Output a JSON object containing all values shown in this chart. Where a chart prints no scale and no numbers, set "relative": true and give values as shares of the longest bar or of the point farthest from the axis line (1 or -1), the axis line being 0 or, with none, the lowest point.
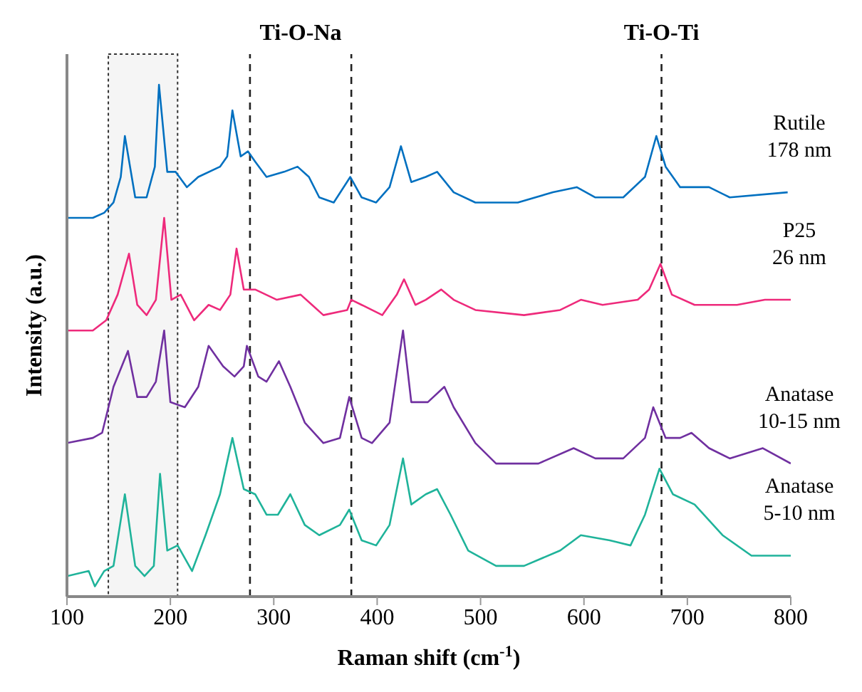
{
  "chart_data": {
    "type": "line",
    "xlabel": "Raman shift (cm$^{-1}$)",
    "ylabel": "Intensity (a.u.)",
    "relative": true,
    "xlim": [
      100,
      800
    ],
    "xticks": [
      100,
      200,
      300,
      400,
      500,
      600,
      700,
      800
    ],
    "marker": "none",
    "line_style": "solid",
    "series": [
      {
        "name": "Rutile 178 nm",
        "color": "#0070c0",
        "x": [
          100,
          125,
          136,
          145,
          152,
          156,
          166,
          177,
          185,
          189,
          197,
          205,
          216,
          227,
          248,
          255,
          260,
          268,
          275,
          282,
          293,
          310,
          323,
          334,
          344,
          358,
          374,
          385,
          399,
          412,
          423,
          433,
          447,
          458,
          474,
          495,
          536,
          570,
          593,
          611,
          638,
          659,
          670,
          679,
          693,
          721,
          741,
          797
        ],
        "values": [
          0.74,
          0.74,
          0.75,
          0.77,
          0.82,
          0.9,
          0.78,
          0.78,
          0.84,
          1.0,
          0.83,
          0.83,
          0.8,
          0.82,
          0.84,
          0.86,
          0.95,
          0.86,
          0.87,
          0.85,
          0.82,
          0.83,
          0.84,
          0.82,
          0.78,
          0.77,
          0.82,
          0.78,
          0.77,
          0.8,
          0.88,
          0.81,
          0.82,
          0.83,
          0.79,
          0.77,
          0.77,
          0.79,
          0.8,
          0.78,
          0.78,
          0.82,
          0.9,
          0.84,
          0.8,
          0.8,
          0.78,
          0.79
        ]
      },
      {
        "name": "P25 26 nm",
        "color": "#ee2a7b",
        "x": [
          100,
          125,
          138,
          149,
          160,
          168,
          177,
          186,
          194,
          201,
          210,
          223,
          237,
          248,
          258,
          264,
          271,
          282,
          303,
          326,
          337,
          348,
          371,
          375,
          385,
          405,
          419,
          426,
          437,
          447,
          462,
          474,
          495,
          542,
          577,
          597,
          618,
          652,
          663,
          674,
          685,
          707,
          748,
          775,
          800
        ],
        "values": [
          0.52,
          0.52,
          0.54,
          0.59,
          0.67,
          0.57,
          0.55,
          0.58,
          0.74,
          0.58,
          0.59,
          0.54,
          0.57,
          0.56,
          0.59,
          0.68,
          0.6,
          0.6,
          0.58,
          0.59,
          0.57,
          0.55,
          0.56,
          0.58,
          0.57,
          0.55,
          0.59,
          0.62,
          0.57,
          0.58,
          0.6,
          0.58,
          0.56,
          0.55,
          0.56,
          0.58,
          0.57,
          0.58,
          0.6,
          0.65,
          0.59,
          0.57,
          0.57,
          0.58,
          0.58
        ]
      },
      {
        "name": "Anatase 10-15 nm",
        "color": "#7030a0",
        "x": [
          100,
          125,
          134,
          145,
          159,
          168,
          177,
          186,
          194,
          200,
          214,
          227,
          237,
          251,
          262,
          271,
          274,
          285,
          293,
          305,
          316,
          330,
          348,
          364,
          373,
          385,
          395,
          412,
          425,
          433,
          449,
          465,
          474,
          495,
          515,
          556,
          590,
          611,
          638,
          659,
          667,
          679,
          693,
          704,
          721,
          741,
          773,
          800
        ],
        "values": [
          0.3,
          0.31,
          0.32,
          0.41,
          0.48,
          0.39,
          0.39,
          0.42,
          0.52,
          0.38,
          0.37,
          0.41,
          0.49,
          0.45,
          0.43,
          0.45,
          0.49,
          0.43,
          0.42,
          0.46,
          0.41,
          0.34,
          0.3,
          0.31,
          0.39,
          0.31,
          0.3,
          0.34,
          0.52,
          0.38,
          0.38,
          0.41,
          0.37,
          0.3,
          0.26,
          0.26,
          0.29,
          0.27,
          0.27,
          0.31,
          0.37,
          0.31,
          0.31,
          0.32,
          0.29,
          0.27,
          0.29,
          0.26
        ]
      },
      {
        "name": "Anatase 5-10 nm",
        "color": "#1fb39a",
        "x": [
          100,
          121,
          127,
          136,
          145,
          156,
          166,
          175,
          184,
          190,
          197,
          207,
          221,
          234,
          248,
          260,
          271,
          282,
          293,
          304,
          316,
          330,
          344,
          364,
          373,
          385,
          399,
          412,
          425,
          433,
          447,
          458,
          471,
          488,
          515,
          542,
          577,
          597,
          625,
          645,
          659,
          673,
          686,
          707,
          734,
          762,
          800
        ],
        "values": [
          0.04,
          0.05,
          0.02,
          0.05,
          0.06,
          0.2,
          0.06,
          0.04,
          0.06,
          0.24,
          0.09,
          0.1,
          0.05,
          0.12,
          0.2,
          0.31,
          0.21,
          0.2,
          0.16,
          0.16,
          0.2,
          0.14,
          0.12,
          0.14,
          0.17,
          0.11,
          0.1,
          0.14,
          0.27,
          0.18,
          0.2,
          0.21,
          0.16,
          0.09,
          0.06,
          0.06,
          0.09,
          0.12,
          0.11,
          0.1,
          0.16,
          0.25,
          0.2,
          0.18,
          0.12,
          0.08,
          0.08
        ]
      }
    ],
    "ref_lines": [
      {
        "axis": "x",
        "value": 277,
        "line_style": "dashed"
      },
      {
        "axis": "x",
        "value": 375,
        "line_style": "dashed"
      },
      {
        "axis": "x",
        "value": 675,
        "label": "Ti-O-Ti",
        "line_style": "dashed"
      }
    ],
    "bands": [
      {
        "axis": "x",
        "from": 140,
        "to": 207,
        "color": "#bbbbbb"
      }
    ],
    "annotations": [
      "Ti-O-Na"
    ]
  }
}
